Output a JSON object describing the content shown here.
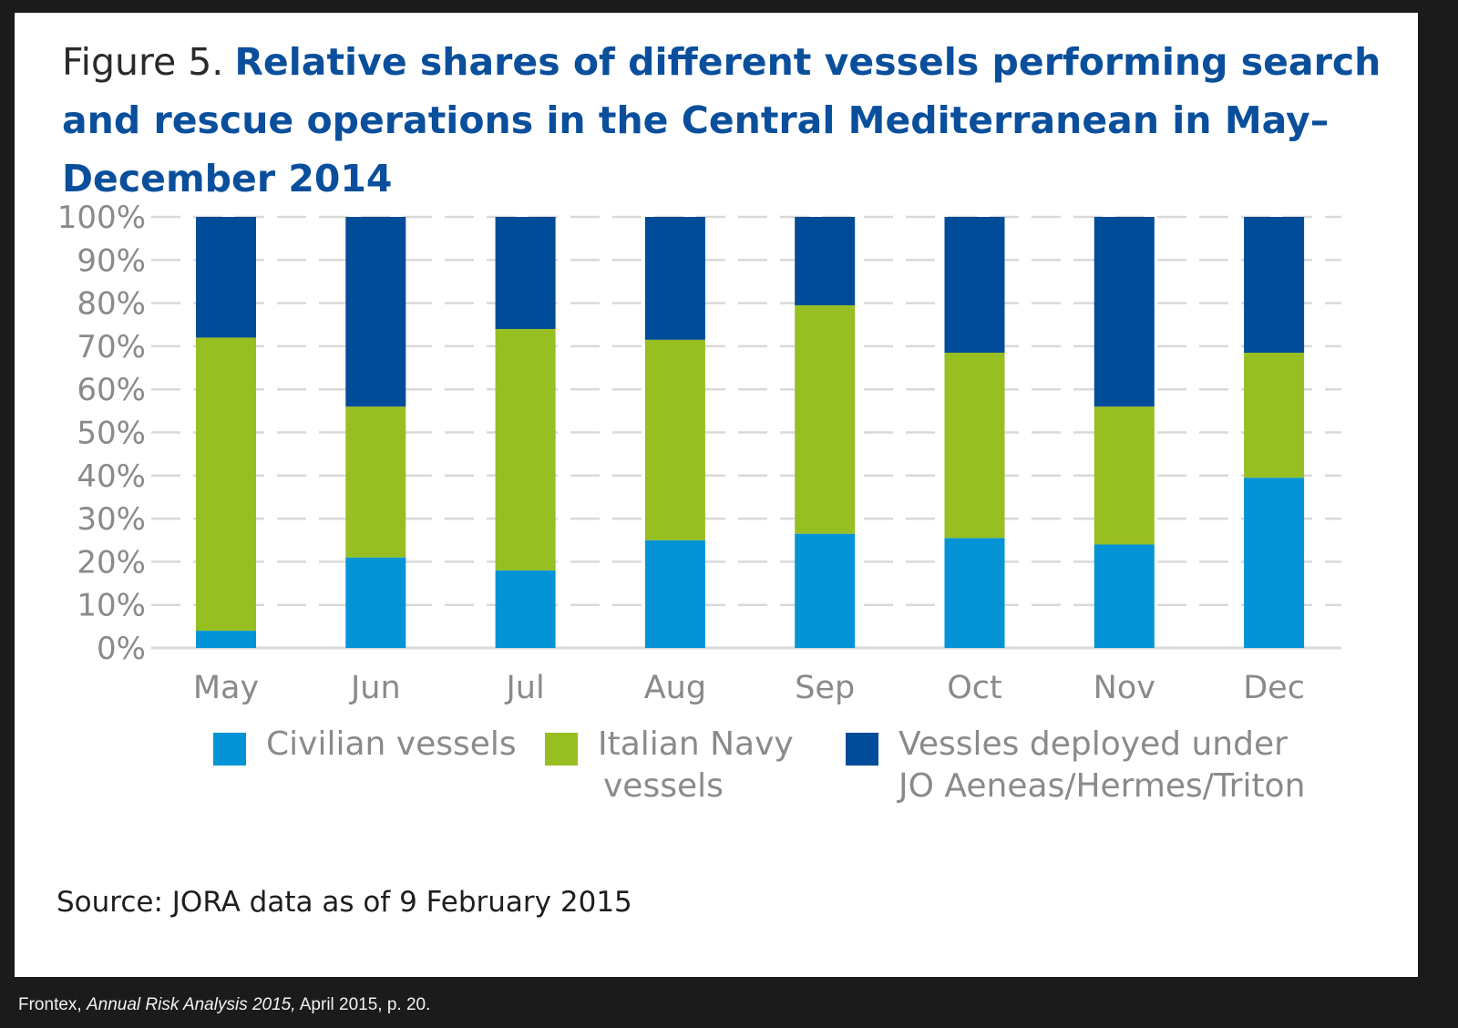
{
  "figure_label": "Figure 5.",
  "source": "Source: JORA data as of 9 February 2015",
  "citation": {
    "prefix": "Frontex, ",
    "work": "Annual Risk Analysis 2015,",
    "suffix": " April 2015, p. 20."
  },
  "colors": {
    "civilian": "#0494d6",
    "navy": "#97bf21",
    "jo": "#004c98",
    "title": "#0a4f9c",
    "grid": "#d9d9d9",
    "axis_text": "#8a8a8a"
  },
  "legend": [
    {
      "label_lines": [
        "Civilian vessels"
      ],
      "color_key": "civilian"
    },
    {
      "label_lines": [
        "Italian Navy",
        "vessels"
      ],
      "color_key": "navy"
    },
    {
      "label_lines": [
        "Vessles deployed under",
        "JO Aeneas/Hermes/Triton"
      ],
      "color_key": "jo"
    }
  ],
  "chart_data": {
    "type": "bar",
    "stacked": true,
    "title": "Relative shares of different vessels performing search and rescue operations in the Central Mediterranean in May–December 2014",
    "xlabel": "",
    "ylabel": "",
    "categories": [
      "May",
      "Jun",
      "Jul",
      "Aug",
      "Sep",
      "Oct",
      "Nov",
      "Dec"
    ],
    "yticks": [
      "0%",
      "10%",
      "20%",
      "30%",
      "40%",
      "50%",
      "60%",
      "70%",
      "80%",
      "90%",
      "100%"
    ],
    "ylim": [
      0,
      100
    ],
    "grid": true,
    "legend_position": "bottom",
    "series": [
      {
        "name": "Civilian vessels",
        "values": [
          4,
          21,
          18,
          25,
          26.5,
          25.5,
          24,
          39.5
        ]
      },
      {
        "name": "Italian Navy vessels",
        "values": [
          68,
          35,
          56,
          46.5,
          53,
          43,
          32,
          29
        ]
      },
      {
        "name": "Vessles deployed under JO Aeneas/Hermes/Triton",
        "values": [
          28,
          44,
          26,
          28.5,
          20.5,
          31.5,
          44,
          31.5
        ]
      }
    ]
  }
}
